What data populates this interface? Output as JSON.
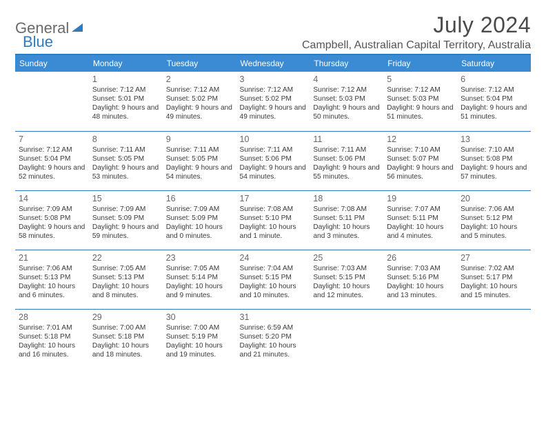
{
  "brand": {
    "general": "General",
    "blue": "Blue"
  },
  "title": "July 2024",
  "location": "Campbell, Australian Capital Territory, Australia",
  "colors": {
    "header_bg": "#3b8bd4",
    "header_text": "#ffffff",
    "rule": "#2e7cc0",
    "text": "#333333",
    "daynum": "#666666",
    "logo_blue": "#2e7cc0",
    "logo_gray": "#6a6a6a",
    "background": "#ffffff"
  },
  "typography": {
    "title_fontsize": 32,
    "location_fontsize": 16,
    "dayheader_fontsize": 12,
    "daynum_fontsize": 12.5,
    "body_fontsize": 10.2
  },
  "day_headers": [
    "Sunday",
    "Monday",
    "Tuesday",
    "Wednesday",
    "Thursday",
    "Friday",
    "Saturday"
  ],
  "weeks": [
    [
      null,
      {
        "n": "1",
        "sr": "Sunrise: 7:12 AM",
        "ss": "Sunset: 5:01 PM",
        "dl": "Daylight: 9 hours and 48 minutes."
      },
      {
        "n": "2",
        "sr": "Sunrise: 7:12 AM",
        "ss": "Sunset: 5:02 PM",
        "dl": "Daylight: 9 hours and 49 minutes."
      },
      {
        "n": "3",
        "sr": "Sunrise: 7:12 AM",
        "ss": "Sunset: 5:02 PM",
        "dl": "Daylight: 9 hours and 49 minutes."
      },
      {
        "n": "4",
        "sr": "Sunrise: 7:12 AM",
        "ss": "Sunset: 5:03 PM",
        "dl": "Daylight: 9 hours and 50 minutes."
      },
      {
        "n": "5",
        "sr": "Sunrise: 7:12 AM",
        "ss": "Sunset: 5:03 PM",
        "dl": "Daylight: 9 hours and 51 minutes."
      },
      {
        "n": "6",
        "sr": "Sunrise: 7:12 AM",
        "ss": "Sunset: 5:04 PM",
        "dl": "Daylight: 9 hours and 51 minutes."
      }
    ],
    [
      {
        "n": "7",
        "sr": "Sunrise: 7:12 AM",
        "ss": "Sunset: 5:04 PM",
        "dl": "Daylight: 9 hours and 52 minutes."
      },
      {
        "n": "8",
        "sr": "Sunrise: 7:11 AM",
        "ss": "Sunset: 5:05 PM",
        "dl": "Daylight: 9 hours and 53 minutes."
      },
      {
        "n": "9",
        "sr": "Sunrise: 7:11 AM",
        "ss": "Sunset: 5:05 PM",
        "dl": "Daylight: 9 hours and 54 minutes."
      },
      {
        "n": "10",
        "sr": "Sunrise: 7:11 AM",
        "ss": "Sunset: 5:06 PM",
        "dl": "Daylight: 9 hours and 54 minutes."
      },
      {
        "n": "11",
        "sr": "Sunrise: 7:11 AM",
        "ss": "Sunset: 5:06 PM",
        "dl": "Daylight: 9 hours and 55 minutes."
      },
      {
        "n": "12",
        "sr": "Sunrise: 7:10 AM",
        "ss": "Sunset: 5:07 PM",
        "dl": "Daylight: 9 hours and 56 minutes."
      },
      {
        "n": "13",
        "sr": "Sunrise: 7:10 AM",
        "ss": "Sunset: 5:08 PM",
        "dl": "Daylight: 9 hours and 57 minutes."
      }
    ],
    [
      {
        "n": "14",
        "sr": "Sunrise: 7:09 AM",
        "ss": "Sunset: 5:08 PM",
        "dl": "Daylight: 9 hours and 58 minutes."
      },
      {
        "n": "15",
        "sr": "Sunrise: 7:09 AM",
        "ss": "Sunset: 5:09 PM",
        "dl": "Daylight: 9 hours and 59 minutes."
      },
      {
        "n": "16",
        "sr": "Sunrise: 7:09 AM",
        "ss": "Sunset: 5:09 PM",
        "dl": "Daylight: 10 hours and 0 minutes."
      },
      {
        "n": "17",
        "sr": "Sunrise: 7:08 AM",
        "ss": "Sunset: 5:10 PM",
        "dl": "Daylight: 10 hours and 1 minute."
      },
      {
        "n": "18",
        "sr": "Sunrise: 7:08 AM",
        "ss": "Sunset: 5:11 PM",
        "dl": "Daylight: 10 hours and 3 minutes."
      },
      {
        "n": "19",
        "sr": "Sunrise: 7:07 AM",
        "ss": "Sunset: 5:11 PM",
        "dl": "Daylight: 10 hours and 4 minutes."
      },
      {
        "n": "20",
        "sr": "Sunrise: 7:06 AM",
        "ss": "Sunset: 5:12 PM",
        "dl": "Daylight: 10 hours and 5 minutes."
      }
    ],
    [
      {
        "n": "21",
        "sr": "Sunrise: 7:06 AM",
        "ss": "Sunset: 5:13 PM",
        "dl": "Daylight: 10 hours and 6 minutes."
      },
      {
        "n": "22",
        "sr": "Sunrise: 7:05 AM",
        "ss": "Sunset: 5:13 PM",
        "dl": "Daylight: 10 hours and 8 minutes."
      },
      {
        "n": "23",
        "sr": "Sunrise: 7:05 AM",
        "ss": "Sunset: 5:14 PM",
        "dl": "Daylight: 10 hours and 9 minutes."
      },
      {
        "n": "24",
        "sr": "Sunrise: 7:04 AM",
        "ss": "Sunset: 5:15 PM",
        "dl": "Daylight: 10 hours and 10 minutes."
      },
      {
        "n": "25",
        "sr": "Sunrise: 7:03 AM",
        "ss": "Sunset: 5:15 PM",
        "dl": "Daylight: 10 hours and 12 minutes."
      },
      {
        "n": "26",
        "sr": "Sunrise: 7:03 AM",
        "ss": "Sunset: 5:16 PM",
        "dl": "Daylight: 10 hours and 13 minutes."
      },
      {
        "n": "27",
        "sr": "Sunrise: 7:02 AM",
        "ss": "Sunset: 5:17 PM",
        "dl": "Daylight: 10 hours and 15 minutes."
      }
    ],
    [
      {
        "n": "28",
        "sr": "Sunrise: 7:01 AM",
        "ss": "Sunset: 5:18 PM",
        "dl": "Daylight: 10 hours and 16 minutes."
      },
      {
        "n": "29",
        "sr": "Sunrise: 7:00 AM",
        "ss": "Sunset: 5:18 PM",
        "dl": "Daylight: 10 hours and 18 minutes."
      },
      {
        "n": "30",
        "sr": "Sunrise: 7:00 AM",
        "ss": "Sunset: 5:19 PM",
        "dl": "Daylight: 10 hours and 19 minutes."
      },
      {
        "n": "31",
        "sr": "Sunrise: 6:59 AM",
        "ss": "Sunset: 5:20 PM",
        "dl": "Daylight: 10 hours and 21 minutes."
      },
      null,
      null,
      null
    ]
  ]
}
